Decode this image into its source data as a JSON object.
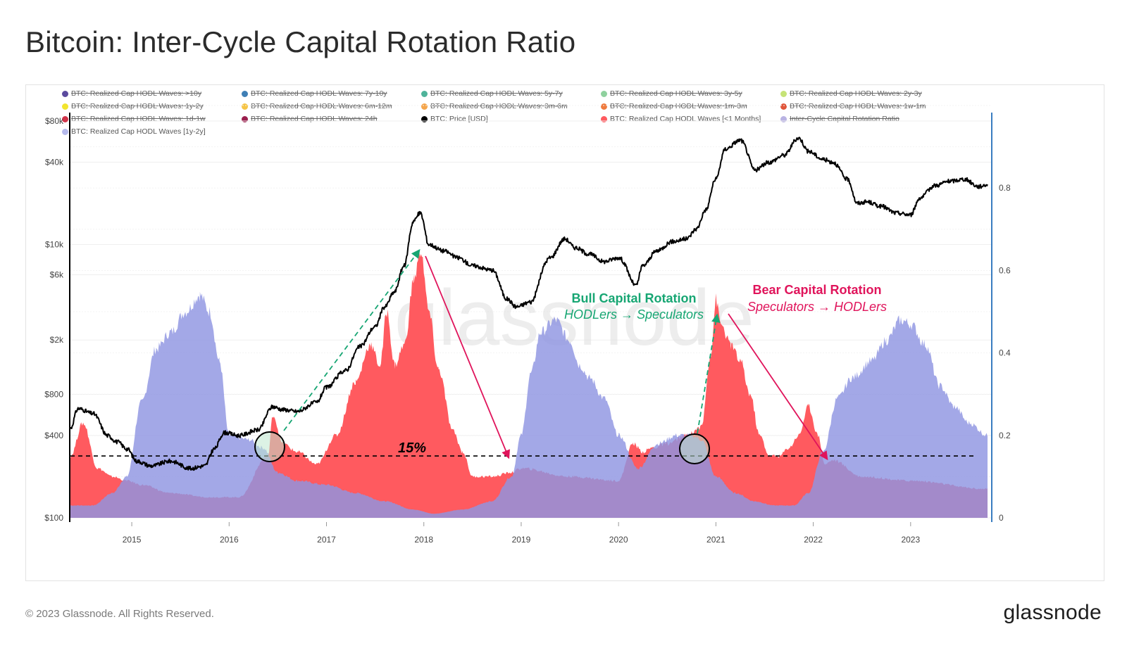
{
  "title": "Bitcoin: Inter-Cycle Capital Rotation Ratio",
  "footer": "© 2023 Glassnode. All Rights Reserved.",
  "logo": "glassnode",
  "watermark": "glassnode",
  "legend": [
    {
      "label": "BTC: Realized Cap HODL Waves: >10y",
      "color": "#5b4a9e",
      "active": false
    },
    {
      "label": "BTC: Realized Cap HODL Waves: 7y-10y",
      "color": "#3f7fb5",
      "active": false
    },
    {
      "label": "BTC: Realized Cap HODL Waves: 5y-7y",
      "color": "#4fb39a",
      "active": false
    },
    {
      "label": "BTC: Realized Cap HODL Waves: 3y-5y",
      "color": "#8fd19e",
      "active": false
    },
    {
      "label": "BTC: Realized Cap HODL Waves: 2y-3y",
      "color": "#c6e377",
      "active": false
    },
    {
      "label": "BTC: Realized Cap HODL Waves: 1y-2y",
      "color": "#f2e52e",
      "active": false
    },
    {
      "label": "BTC: Realized Cap HODL Waves: 6m-12m",
      "color": "#f6c445",
      "active": false
    },
    {
      "label": "BTC: Realized Cap HODL Waves: 3m-6m",
      "color": "#f5a54a",
      "active": false
    },
    {
      "label": "BTC: Realized Cap HODL Waves: 1m-3m",
      "color": "#ef7a3d",
      "active": false
    },
    {
      "label": "BTC: Realized Cap HODL Waves: 1w-1m",
      "color": "#e0553a",
      "active": false
    },
    {
      "label": "BTC: Realized Cap HODL Waves: 1d-1w",
      "color": "#d2354b",
      "active": false
    },
    {
      "label": "BTC: Realized Cap HODL Waves: 24h",
      "color": "#9b1f4e",
      "active": false
    },
    {
      "label": "BTC: Price [USD]",
      "color": "#000000",
      "active": true
    },
    {
      "label": "BTC: Realized Cap HODL Waves [<1 Months]",
      "color": "#ff5a5f",
      "active": true
    },
    {
      "label": "Inter-Cycle Capital Rotation Ratio",
      "color": "#b9b3e3",
      "active": false
    },
    {
      "label": "BTC: Realized Cap HODL Waves [1y-2y]",
      "color": "#b5b9ec",
      "active": true
    }
  ],
  "annotations": {
    "bull_title": "Bull Capital Rotation",
    "bull_sub": "HODLers → Speculators",
    "bear_title": "Bear Capital Rotation",
    "bear_sub": "Speculators → HODLers",
    "threshold_label": "15%",
    "colors": {
      "bull": "#17a673",
      "bear": "#e0145b",
      "threshold": "#000000"
    }
  },
  "chart_data": {
    "type": "area",
    "x_ticks": [
      "2015",
      "2016",
      "2017",
      "2018",
      "2019",
      "2020",
      "2021",
      "2022",
      "2023"
    ],
    "x_range": [
      2014.37,
      2023.79
    ],
    "left_axis": {
      "scale": "log",
      "ticks": [
        "$100",
        "$400",
        "$800",
        "$2k",
        "$6k",
        "$10k",
        "$40k",
        "$80k"
      ],
      "tick_values": [
        100,
        400,
        800,
        2000,
        6000,
        10000,
        40000,
        80000
      ],
      "range": [
        100,
        80000
      ]
    },
    "right_axis": {
      "ticks": [
        "0",
        "0.2",
        "0.4",
        "0.6",
        "0.8"
      ],
      "range": [
        0,
        1.0
      ]
    },
    "threshold": 0.15,
    "series": [
      {
        "name": "BTC: Realized Cap HODL Waves [1y-2y]",
        "color": "#8f95e2",
        "x": [
          2014.37,
          2014.6,
          2014.8,
          2014.95,
          2015.1,
          2015.25,
          2015.4,
          2015.55,
          2015.7,
          2015.8,
          2015.9,
          2016.0,
          2016.2,
          2016.35,
          2016.5,
          2016.7,
          2017.0,
          2017.3,
          2017.6,
          2017.9,
          2018.1,
          2018.4,
          2018.7,
          2018.9,
          2019.0,
          2019.1,
          2019.2,
          2019.35,
          2019.5,
          2019.6,
          2019.7,
          2019.85,
          2020.0,
          2020.2,
          2020.4,
          2020.6,
          2020.75,
          2020.85,
          2021.0,
          2021.2,
          2021.4,
          2021.6,
          2021.8,
          2021.95,
          2022.1,
          2022.25,
          2022.4,
          2022.6,
          2022.75,
          2022.9,
          2023.0,
          2023.15,
          2023.3,
          2023.45,
          2023.6,
          2023.79
        ],
        "values": [
          0.03,
          0.03,
          0.06,
          0.1,
          0.28,
          0.41,
          0.45,
          0.5,
          0.54,
          0.5,
          0.38,
          0.2,
          0.19,
          0.17,
          0.11,
          0.09,
          0.08,
          0.06,
          0.04,
          0.02,
          0.01,
          0.02,
          0.04,
          0.1,
          0.2,
          0.35,
          0.45,
          0.48,
          0.43,
          0.37,
          0.34,
          0.29,
          0.2,
          0.12,
          0.18,
          0.2,
          0.2,
          0.19,
          0.1,
          0.06,
          0.04,
          0.03,
          0.03,
          0.06,
          0.16,
          0.29,
          0.34,
          0.38,
          0.43,
          0.48,
          0.47,
          0.42,
          0.32,
          0.27,
          0.23,
          0.2
        ]
      },
      {
        "name": "BTC: Realized Cap HODL Waves [<1 Months]",
        "color": "#ff5a5f",
        "x": [
          2014.37,
          2014.5,
          2014.65,
          2014.8,
          2014.95,
          2015.1,
          2015.4,
          2015.8,
          2016.1,
          2016.4,
          2016.45,
          2016.55,
          2016.7,
          2016.9,
          2017.1,
          2017.3,
          2017.45,
          2017.55,
          2017.62,
          2017.7,
          2017.8,
          2017.9,
          2017.97,
          2018.05,
          2018.15,
          2018.3,
          2018.4,
          2018.5,
          2018.7,
          2018.9,
          2019.0,
          2019.5,
          2020.0,
          2020.15,
          2020.25,
          2020.35,
          2020.5,
          2020.7,
          2020.85,
          2020.95,
          2021.0,
          2021.05,
          2021.15,
          2021.25,
          2021.35,
          2021.45,
          2021.55,
          2021.65,
          2021.75,
          2021.85,
          2021.95,
          2022.05,
          2022.12,
          2022.2,
          2022.5,
          2023.0,
          2023.79
        ],
        "values": [
          0.15,
          0.23,
          0.12,
          0.1,
          0.09,
          0.08,
          0.06,
          0.05,
          0.05,
          0.15,
          0.25,
          0.18,
          0.16,
          0.13,
          0.2,
          0.33,
          0.42,
          0.37,
          0.5,
          0.37,
          0.42,
          0.58,
          0.65,
          0.5,
          0.36,
          0.21,
          0.16,
          0.1,
          0.1,
          0.11,
          0.12,
          0.1,
          0.09,
          0.18,
          0.16,
          0.17,
          0.18,
          0.2,
          0.22,
          0.4,
          0.53,
          0.47,
          0.42,
          0.38,
          0.3,
          0.2,
          0.15,
          0.15,
          0.17,
          0.2,
          0.27,
          0.2,
          0.13,
          0.14,
          0.1,
          0.09,
          0.07
        ]
      },
      {
        "name": "BTC: Price [USD]",
        "color": "#000000",
        "x": [
          2014.37,
          2014.45,
          2014.6,
          2014.75,
          2014.85,
          2014.95,
          2015.05,
          2015.2,
          2015.4,
          2015.6,
          2015.75,
          2015.85,
          2015.95,
          2016.1,
          2016.3,
          2016.45,
          2016.55,
          2016.7,
          2016.9,
          2017.0,
          2017.2,
          2017.35,
          2017.5,
          2017.6,
          2017.7,
          2017.8,
          2017.9,
          2017.96,
          2018.05,
          2018.2,
          2018.35,
          2018.5,
          2018.7,
          2018.85,
          2018.95,
          2019.1,
          2019.3,
          2019.45,
          2019.55,
          2019.7,
          2019.85,
          2020.0,
          2020.18,
          2020.25,
          2020.4,
          2020.55,
          2020.7,
          2020.8,
          2020.9,
          2021.0,
          2021.1,
          2021.25,
          2021.4,
          2021.55,
          2021.7,
          2021.85,
          2021.95,
          2022.1,
          2022.2,
          2022.35,
          2022.45,
          2022.55,
          2022.7,
          2022.85,
          2023.0,
          2023.1,
          2023.25,
          2023.4,
          2023.55,
          2023.7,
          2023.79
        ],
        "values": [
          450,
          630,
          580,
          400,
          360,
          320,
          260,
          240,
          260,
          230,
          240,
          320,
          420,
          400,
          440,
          650,
          620,
          600,
          700,
          900,
          1200,
          1800,
          2500,
          3500,
          4500,
          7000,
          15000,
          17000,
          10000,
          9000,
          8000,
          7000,
          6500,
          4000,
          3500,
          3800,
          8000,
          11000,
          9500,
          8500,
          7500,
          8000,
          5000,
          7000,
          9000,
          10500,
          11000,
          13000,
          18000,
          30000,
          50000,
          58000,
          35000,
          40000,
          45000,
          60000,
          48000,
          42000,
          40000,
          30000,
          20000,
          20500,
          19000,
          17000,
          16500,
          22000,
          27000,
          29000,
          30000,
          26500,
          27500
        ]
      }
    ]
  }
}
